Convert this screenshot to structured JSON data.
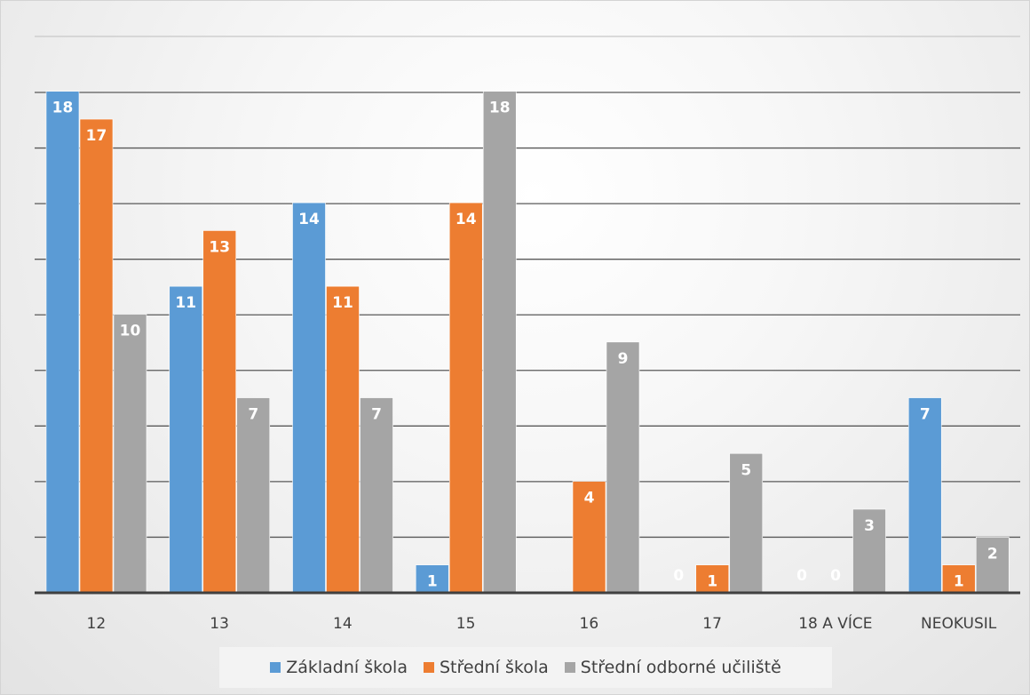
{
  "chart_data": {
    "type": "bar",
    "categories": [
      "12",
      "13",
      "14",
      "15",
      "16",
      "17",
      "18 A VÍCE",
      "NEOKUSIL"
    ],
    "series": [
      {
        "name": "Základní škola",
        "color": "#5b9bd5",
        "values": [
          18,
          11,
          14,
          1,
          null,
          0,
          0,
          7
        ]
      },
      {
        "name": "Střední škola",
        "color": "#ed7d31",
        "values": [
          17,
          13,
          11,
          14,
          4,
          1,
          0,
          1
        ]
      },
      {
        "name": "Střední odborné učiliště",
        "color": "#a5a5a5",
        "values": [
          10,
          7,
          7,
          18,
          9,
          5,
          3,
          2
        ]
      }
    ],
    "ylim": [
      0,
      18
    ],
    "grid": true,
    "legend_position": "bottom",
    "data_labels": true
  }
}
